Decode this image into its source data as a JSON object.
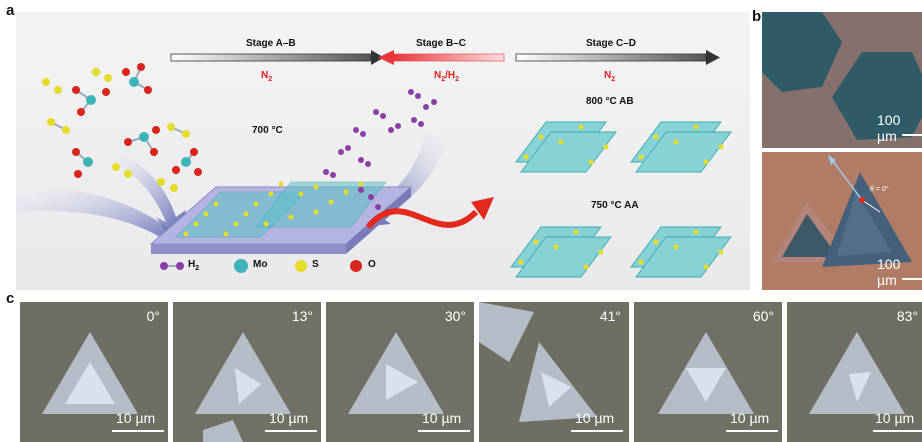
{
  "panel_labels": {
    "a": "a",
    "b": "b",
    "c": "c"
  },
  "panel_a": {
    "stages": [
      {
        "label": "Stage A–B",
        "gas": "N",
        "gas_sub": "2"
      },
      {
        "label": "Stage B–C",
        "gas": "N",
        "gas_sub": "2",
        "gas2": "/H",
        "gas2_sub": "2"
      },
      {
        "label": "Stage C–D",
        "gas": "N",
        "gas_sub": "2"
      }
    ],
    "temp_growth": "700 °C",
    "temp_ab": "800 °C AB",
    "temp_aa": "750 °C AA",
    "legend": [
      {
        "label": "H",
        "sub": "2",
        "color": "#8b3fa6"
      },
      {
        "label": "Mo",
        "color": "#3fb4b8"
      },
      {
        "label": "S",
        "color": "#e6dd2a"
      },
      {
        "label": "O",
        "color": "#d9261c"
      }
    ]
  },
  "panel_b": {
    "scale_top": "100 µm",
    "scale_bottom": "100 µm",
    "theta_label": "θ = 0°"
  },
  "panel_c": {
    "images": [
      {
        "angle": "0°",
        "scale": "10 µm"
      },
      {
        "angle": "13°",
        "scale": "10 µm"
      },
      {
        "angle": "30°",
        "scale": "10 µm"
      },
      {
        "angle": "41°",
        "scale": "10 µm"
      },
      {
        "angle": "60°",
        "scale": "10 µm"
      },
      {
        "angle": "83°",
        "scale": "10 µm"
      }
    ]
  },
  "colors": {
    "arrow_n2": "#ffffff",
    "arrow_h2": "#e8383d",
    "substrate": "#a6a6d8",
    "blue_swoosh": "#4a55a8",
    "red_wave": "#e42a1d",
    "micro_bg_c": "#6f6f64",
    "flake_c": "#b6bfcc",
    "micro_bg_b_top": "#8a7370",
    "micro_bg_b_bottom": "#b87e63",
    "flake_b": "#2f5a68"
  }
}
